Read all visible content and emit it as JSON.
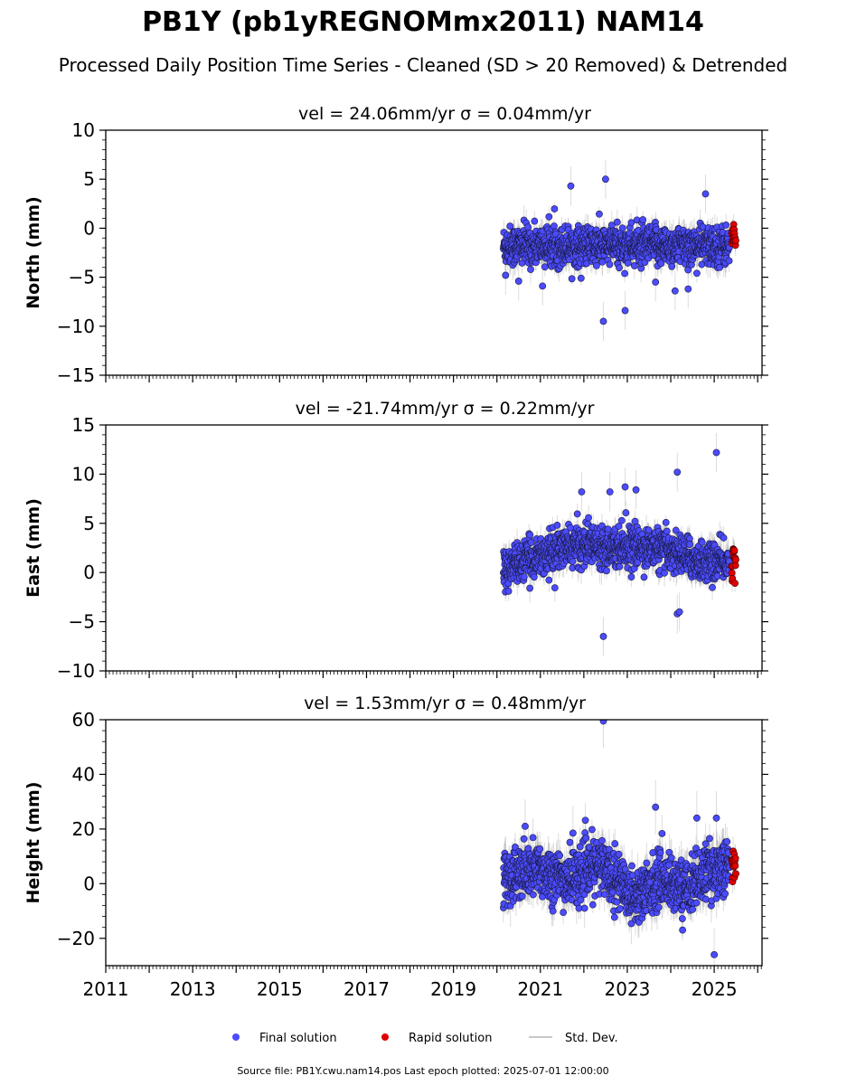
{
  "figure": {
    "title": "PB1Y (pb1yREGNOMmx2011) NAM14",
    "subtitle": "Processed Daily Position Time Series - Cleaned (SD > 20 Removed) & Detrended",
    "source": "Source file: PB1Y.cwu.nam14.pos  Last epoch plotted: 2025-07-01 12:00:00"
  },
  "legend": {
    "placement": "bottom-center",
    "items": [
      {
        "key": "final",
        "label": "Final solution",
        "color": "#4b4bff"
      },
      {
        "key": "rapid",
        "label": "Rapid solution",
        "color": "#e00000"
      },
      {
        "key": "std",
        "label": "Std. Dev.",
        "color": "#c8c8c8"
      }
    ]
  },
  "chart_data": [
    {
      "type": "scatter",
      "panel": "north",
      "title": "vel = 24.06mm/yr   σ = 0.04mm/yr",
      "ylabel": "North (mm)",
      "xlim": [
        2011.0,
        2026.1
      ],
      "ylim": [
        -15,
        10
      ],
      "yticks": [
        10,
        5,
        0,
        -5,
        -10,
        -15
      ],
      "grid": false,
      "series": [
        {
          "name": "Final solution",
          "x_range": [
            2020.15,
            2025.35
          ],
          "mean": -1.8,
          "spread": 1.1,
          "outliers": [
            [
              2021.7,
              4.3
            ],
            [
              2022.5,
              5.0
            ],
            [
              2022.45,
              -9.5
            ],
            [
              2022.95,
              -8.4
            ],
            [
              2024.8,
              3.5
            ],
            [
              2020.2,
              -4.8
            ],
            [
              2020.5,
              -5.4
            ],
            [
              2021.05,
              -5.9
            ],
            [
              2023.65,
              -5.5
            ],
            [
              2024.1,
              -6.4
            ],
            [
              2024.4,
              -6.2
            ]
          ]
        },
        {
          "name": "Rapid solution",
          "x_range": [
            2025.4,
            2025.5
          ],
          "mean": -1.0,
          "spread": 0.8
        }
      ]
    },
    {
      "type": "scatter",
      "panel": "east",
      "title": "vel = -21.74mm/yr   σ = 0.22mm/yr",
      "ylabel": "East (mm)",
      "xlim": [
        2011.0,
        2026.1
      ],
      "ylim": [
        -10,
        15
      ],
      "yticks": [
        15,
        10,
        5,
        0,
        -5,
        -10
      ],
      "grid": false,
      "series": [
        {
          "name": "Final solution",
          "x_range": [
            2020.15,
            2025.35
          ],
          "trend": [
            [
              2020.15,
              0.3
            ],
            [
              2021.0,
              1.8
            ],
            [
              2022.0,
              2.9
            ],
            [
              2023.0,
              2.7
            ],
            [
              2024.0,
              2.2
            ],
            [
              2024.6,
              1.2
            ],
            [
              2025.35,
              1.0
            ]
          ],
          "spread": 1.1,
          "outliers": [
            [
              2022.45,
              -6.5
            ],
            [
              2025.05,
              12.2
            ],
            [
              2024.15,
              10.2
            ],
            [
              2021.95,
              8.2
            ],
            [
              2022.95,
              8.7
            ],
            [
              2023.2,
              8.4
            ],
            [
              2022.6,
              8.2
            ],
            [
              2024.15,
              -4.2
            ],
            [
              2024.2,
              -4.0
            ]
          ]
        },
        {
          "name": "Rapid solution",
          "x_range": [
            2025.4,
            2025.5
          ],
          "mean": 1.2,
          "spread": 0.9
        }
      ]
    },
    {
      "type": "scatter",
      "panel": "height",
      "title": "vel = 1.53mm/yr   σ = 0.48mm/yr",
      "ylabel": "Height (mm)",
      "xlim": [
        2011.0,
        2026.1
      ],
      "ylim": [
        -30,
        60
      ],
      "yticks": [
        60,
        40,
        20,
        0,
        -20
      ],
      "grid": false,
      "series": [
        {
          "name": "Final solution",
          "x_range": [
            2020.15,
            2025.35
          ],
          "trend": [
            [
              2020.15,
              2.0
            ],
            [
              2021.0,
              5.0
            ],
            [
              2021.6,
              1.0
            ],
            [
              2022.4,
              7.0
            ],
            [
              2023.2,
              -5.0
            ],
            [
              2023.8,
              2.0
            ],
            [
              2024.3,
              -2.0
            ],
            [
              2024.8,
              4.0
            ],
            [
              2025.35,
              7.0
            ]
          ],
          "spread": 5.5,
          "outliers": [
            [
              2022.45,
              59.5
            ],
            [
              2025.0,
              -26.0
            ],
            [
              2023.65,
              28.0
            ],
            [
              2025.05,
              24.0
            ],
            [
              2024.6,
              24.0
            ],
            [
              2020.65,
              21.0
            ],
            [
              2021.75,
              18.5
            ]
          ]
        },
        {
          "name": "Rapid solution",
          "x_range": [
            2025.4,
            2025.5
          ],
          "mean": 6.0,
          "spread": 4.0
        }
      ]
    }
  ],
  "x_axis": {
    "tick_labels": [
      "2011",
      "2013",
      "2015",
      "2017",
      "2019",
      "2021",
      "2023",
      "2025"
    ],
    "tick_values": [
      2011,
      2013,
      2015,
      2017,
      2019,
      2021,
      2023,
      2025
    ]
  }
}
